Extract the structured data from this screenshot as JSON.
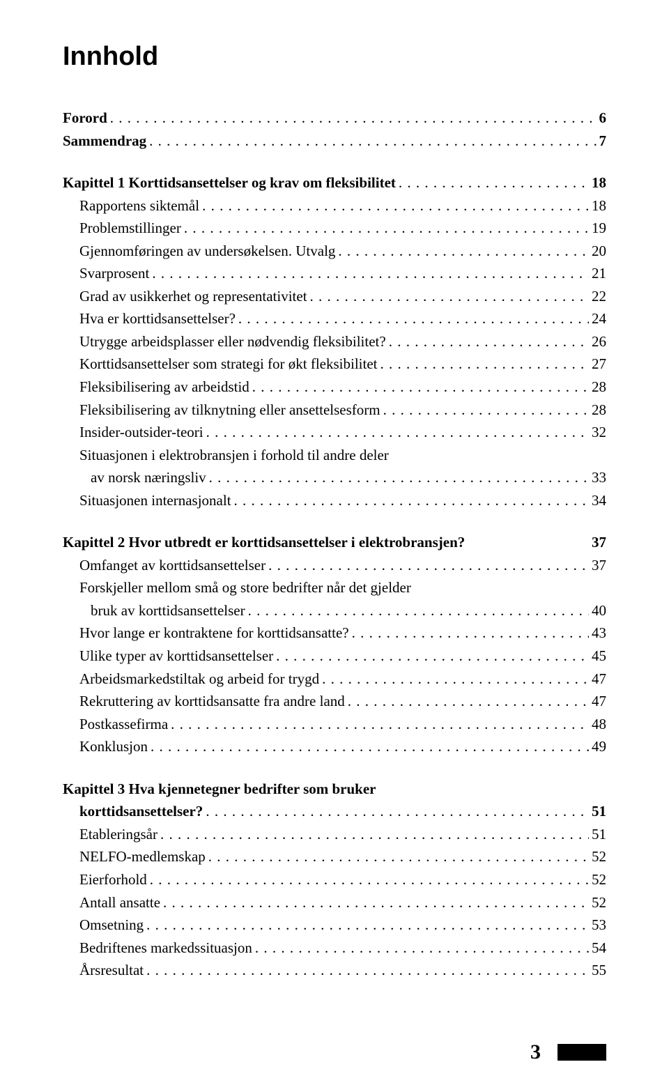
{
  "title": "Innhold",
  "page_number": "3",
  "colors": {
    "text": "#000000",
    "background": "#ffffff",
    "bar": "#000000"
  },
  "typography": {
    "title_font": "Arial",
    "title_size_pt": 28,
    "title_weight": 700,
    "body_font": "Times New Roman",
    "body_size_pt": 16
  },
  "blocks": [
    {
      "entries": [
        {
          "label": "Forord",
          "page": "6",
          "bold": true
        },
        {
          "label": "Sammendrag",
          "page": "7",
          "bold": true
        }
      ]
    },
    {
      "entries": [
        {
          "label": "Kapittel 1 Korttidsansettelser og krav om fleksibilitet",
          "page": "18",
          "bold": true
        },
        {
          "label": "Rapportens siktemål",
          "page": "18",
          "indent": true
        },
        {
          "label": "Problemstillinger",
          "page": "19",
          "indent": true
        },
        {
          "label": "Gjennomføringen av undersøkelsen. Utvalg",
          "page": "20",
          "indent": true
        },
        {
          "label": "Svarprosent",
          "page": "21",
          "indent": true
        },
        {
          "label": "Grad av usikkerhet og representativitet",
          "page": "22",
          "indent": true
        },
        {
          "label": "Hva er korttidsansettelser?",
          "page": "24",
          "indent": true
        },
        {
          "label": "Utrygge arbeidsplasser eller nødvendig fleksibilitet?",
          "page": "26",
          "indent": true
        },
        {
          "label": "Korttidsansettelser som strategi for økt fleksibilitet",
          "page": "27",
          "indent": true
        },
        {
          "label": "Fleksibilisering av arbeidstid",
          "page": "28",
          "indent": true
        },
        {
          "label": "Fleksibilisering av tilknytning eller ansettelsesform",
          "page": "28",
          "indent": true
        },
        {
          "label": "Insider-outsider-teori",
          "page": "32",
          "indent": true
        },
        {
          "label": "Situasjonen i elektrobransjen i forhold til andre deler",
          "continuation": true,
          "indent": true
        },
        {
          "label": "av norsk næringsliv",
          "page": "33",
          "indent": true,
          "sub": true
        },
        {
          "label": "Situasjonen internasjonalt",
          "page": "34",
          "indent": true
        }
      ]
    },
    {
      "entries": [
        {
          "label": "Kapittel 2 Hvor utbredt er korttidsansettelser i elektrobransjen?",
          "page": "37",
          "bold": true,
          "noleader": true
        },
        {
          "label": "Omfanget av korttidsansettelser",
          "page": "37",
          "indent": true
        },
        {
          "label": "Forskjeller mellom små og store bedrifter når det gjelder",
          "continuation": true,
          "indent": true
        },
        {
          "label": "bruk av korttidsansettelser",
          "page": "40",
          "indent": true,
          "sub": true
        },
        {
          "label": "Hvor lange er kontraktene for korttidsansatte?",
          "page": "43",
          "indent": true
        },
        {
          "label": "Ulike typer av korttidsansettelser",
          "page": "45",
          "indent": true
        },
        {
          "label": "Arbeidsmarkedstiltak og arbeid for trygd",
          "page": "47",
          "indent": true
        },
        {
          "label": "Rekruttering av korttidsansatte fra andre land",
          "page": "47",
          "indent": true
        },
        {
          "label": "Postkassefirma",
          "page": "48",
          "indent": true
        },
        {
          "label": "Konklusjon",
          "page": "49",
          "indent": true
        }
      ]
    },
    {
      "entries": [
        {
          "label": "Kapittel 3 Hva kjennetegner bedrifter som bruker",
          "continuation": true,
          "bold": true
        },
        {
          "label": "korttidsansettelser?",
          "page": "51",
          "bold": true,
          "indent": true
        },
        {
          "label": "Etableringsår",
          "page": "51",
          "indent": true
        },
        {
          "label": "NELFO-medlemskap",
          "page": "52",
          "indent": true
        },
        {
          "label": "Eierforhold",
          "page": "52",
          "indent": true
        },
        {
          "label": "Antall ansatte",
          "page": "52",
          "indent": true
        },
        {
          "label": "Omsetning",
          "page": "53",
          "indent": true
        },
        {
          "label": "Bedriftenes markedssituasjon",
          "page": "54",
          "indent": true
        },
        {
          "label": "Årsresultat",
          "page": "55",
          "indent": true
        }
      ]
    }
  ]
}
